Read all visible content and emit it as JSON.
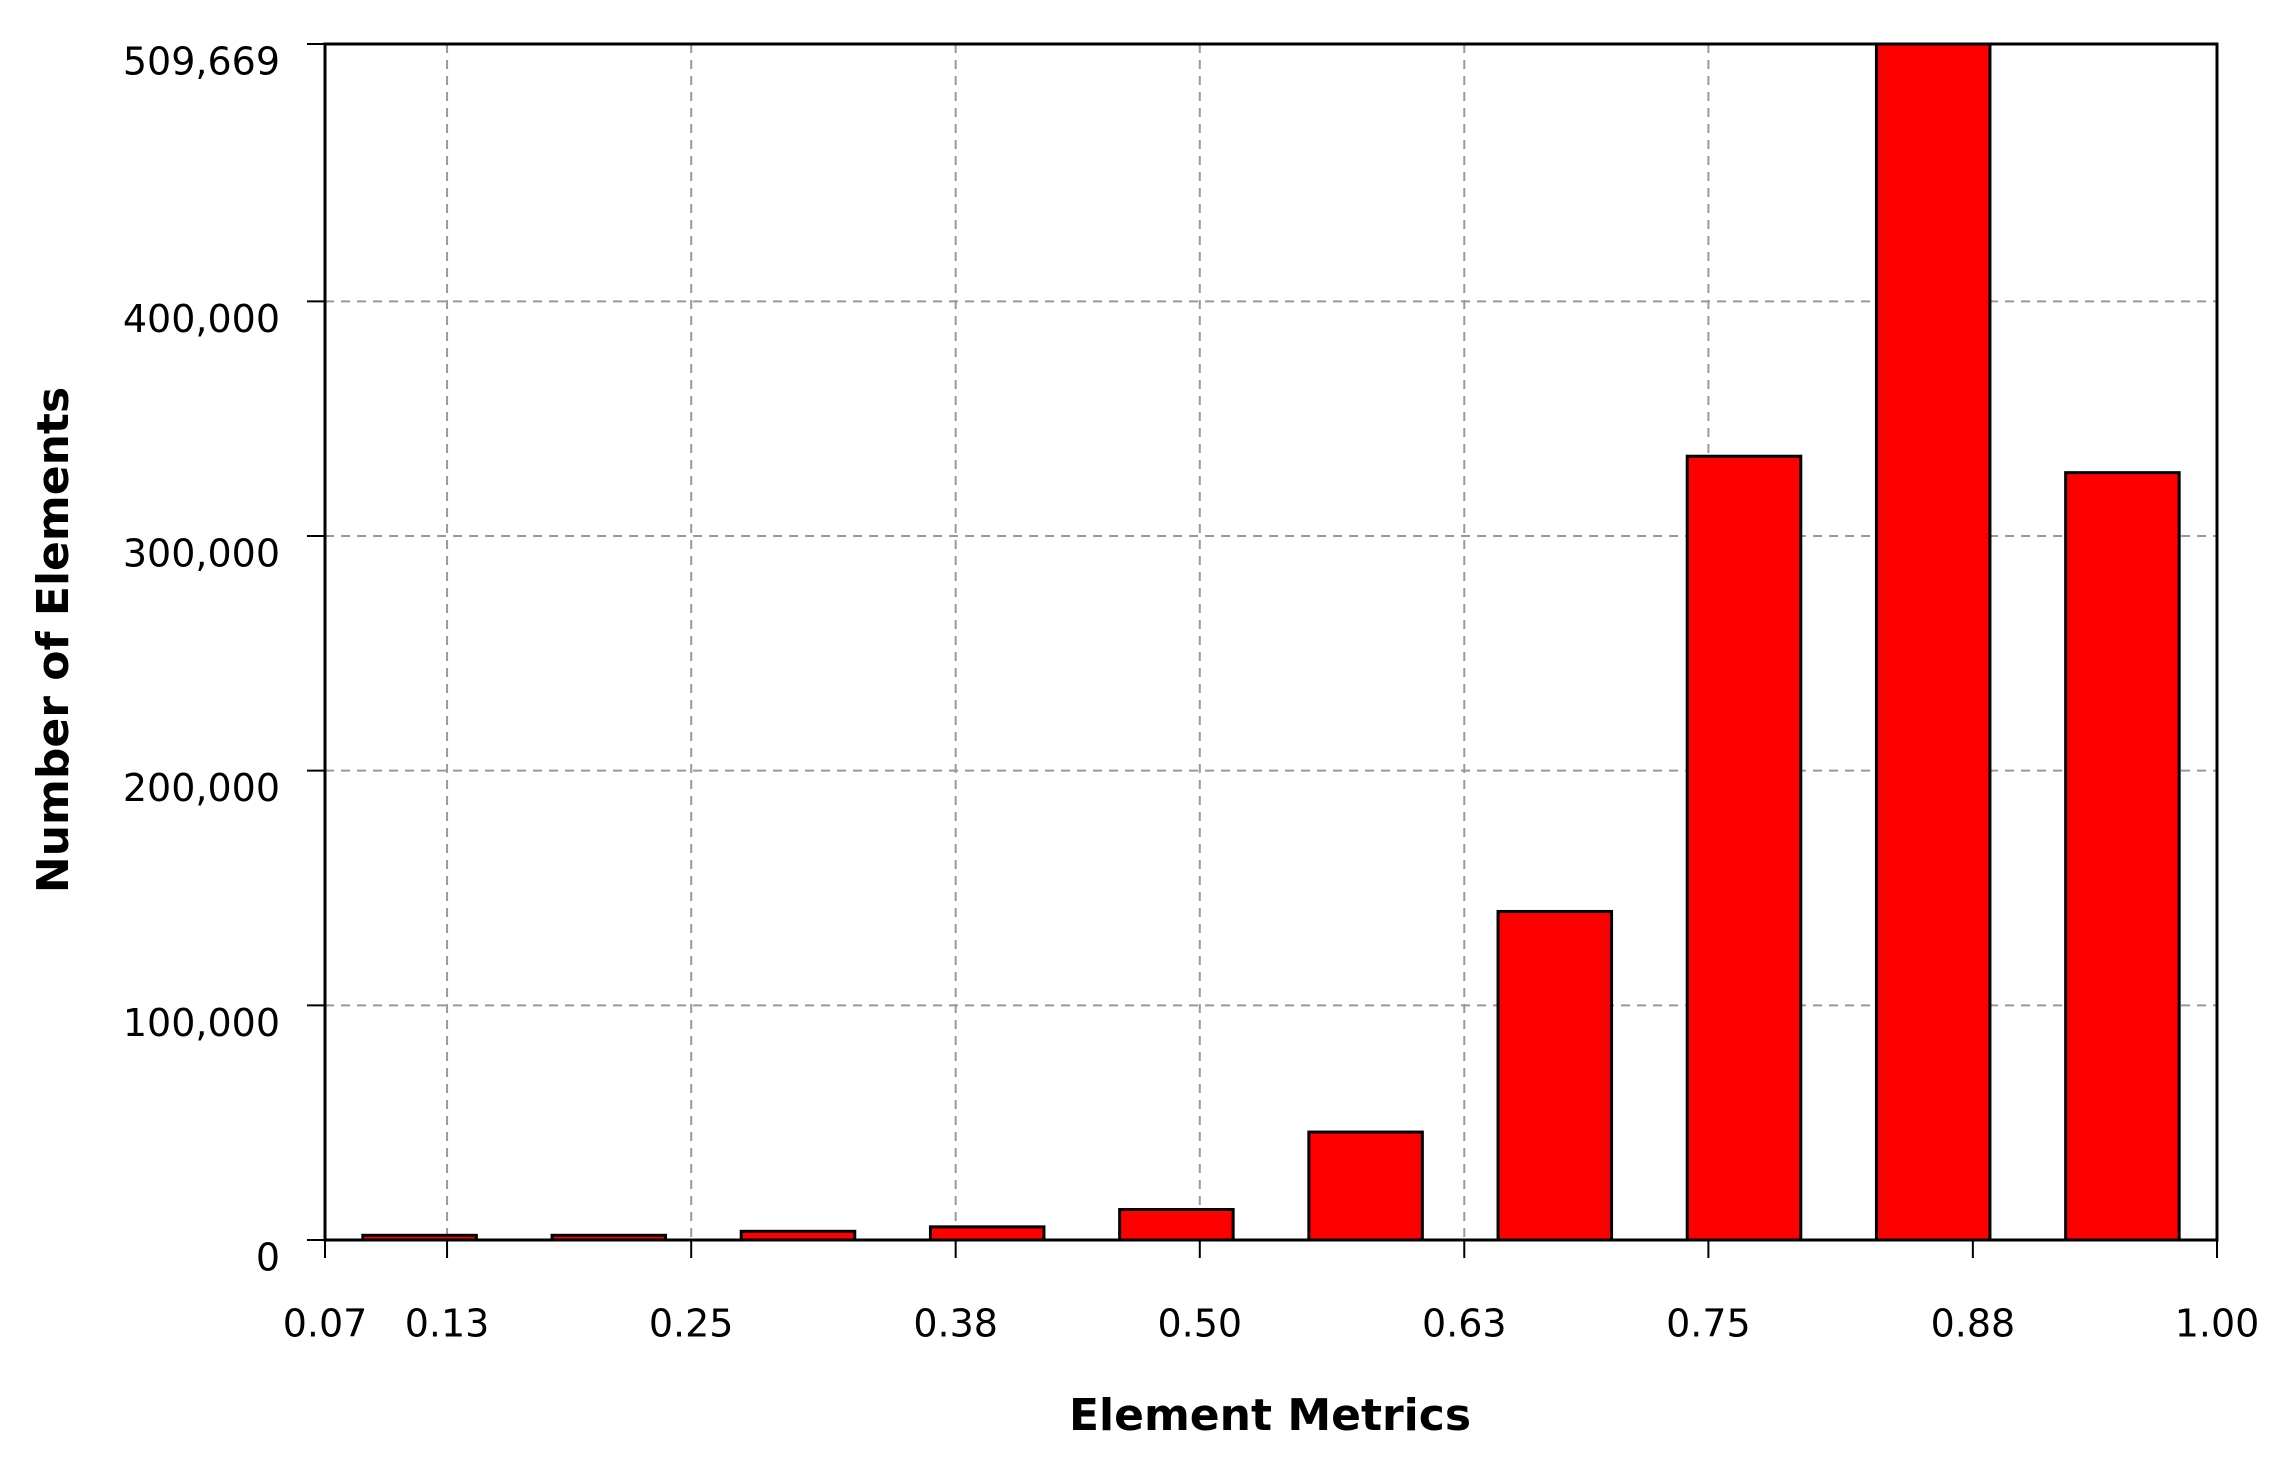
{
  "chart_data": {
    "type": "histogram",
    "x_label": "Element Metrics",
    "y_label": "Number of Elements",
    "bins": [
      0.07,
      0.163,
      0.256,
      0.349,
      0.442,
      0.535,
      0.628,
      0.721,
      0.814,
      0.907,
      1.0
    ],
    "counts": [
      2000,
      2000,
      3700,
      5600,
      13000,
      46000,
      140000,
      334000,
      509669,
      327000
    ],
    "color": "#ff0000",
    "xlim": [
      0.07,
      1.0
    ],
    "xticks": [
      0.07,
      0.13,
      0.25,
      0.38,
      {
        "value": 0.5,
        "label": "0.50"
      },
      0.63,
      0.75,
      0.88,
      {
        "value": 1,
        "label": "1.00"
      }
    ],
    "ylim": [
      0,
      509669
    ],
    "yticks": [
      0,
      {
        "value": 100000,
        "label": "100,000"
      },
      {
        "value": 200000,
        "label": "200,000"
      },
      {
        "value": 300000,
        "label": "300,000"
      },
      {
        "value": 400000,
        "label": "400,000"
      },
      {
        "value": 509669,
        "label": "509,669"
      }
    ],
    "grid": true
  }
}
